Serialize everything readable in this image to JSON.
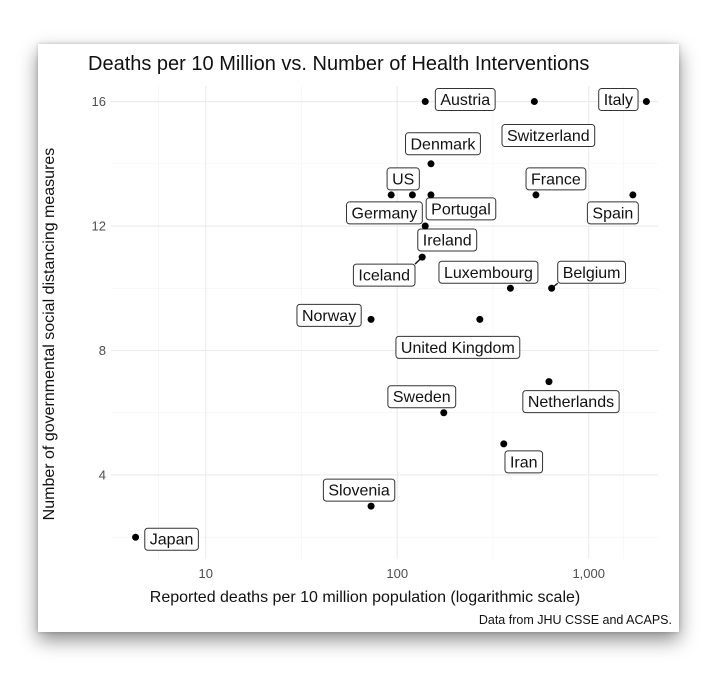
{
  "chart_data": {
    "type": "scatter",
    "title": "Deaths per 10 Million vs. Number of Health Interventions",
    "xlabel": "Reported deaths per 10 million population (logarithmic scale)",
    "ylabel": "Number of governmental social distancing measures",
    "caption": "Data from JHU CSSE and ACAPS.",
    "x_scale": "log",
    "xlim": [
      3.2,
      2300
    ],
    "ylim": [
      1.3,
      16.5
    ],
    "x_ticks": [
      10,
      100,
      1000
    ],
    "x_tick_labels": [
      "10",
      "100",
      "1,000"
    ],
    "y_ticks": [
      4,
      8,
      12,
      16
    ],
    "y_tick_labels": [
      "4",
      "8",
      "12",
      "16"
    ],
    "grid": true,
    "points": [
      {
        "label": "Austria",
        "x": 140,
        "y": 16
      },
      {
        "label": "Switzerland",
        "x": 520,
        "y": 16
      },
      {
        "label": "Italy",
        "x": 2000,
        "y": 16
      },
      {
        "label": "Denmark",
        "x": 150,
        "y": 14
      },
      {
        "label": "US",
        "x": 93,
        "y": 13
      },
      {
        "label": "Germany",
        "x": 120,
        "y": 13
      },
      {
        "label": "Portugal",
        "x": 150,
        "y": 13
      },
      {
        "label": "France",
        "x": 530,
        "y": 13
      },
      {
        "label": "Spain",
        "x": 1700,
        "y": 13
      },
      {
        "label": "Ireland",
        "x": 140,
        "y": 12
      },
      {
        "label": "Iceland",
        "x": 135,
        "y": 11
      },
      {
        "label": "Luxembourg",
        "x": 390,
        "y": 10
      },
      {
        "label": "Belgium",
        "x": 640,
        "y": 10
      },
      {
        "label": "Norway",
        "x": 73,
        "y": 9
      },
      {
        "label": "United Kingdom",
        "x": 270,
        "y": 9
      },
      {
        "label": "Netherlands",
        "x": 620,
        "y": 7
      },
      {
        "label": "Sweden",
        "x": 175,
        "y": 6
      },
      {
        "label": "Iran",
        "x": 360,
        "y": 5
      },
      {
        "label": "Slovenia",
        "x": 73,
        "y": 3
      },
      {
        "label": "Japan",
        "x": 4.3,
        "y": 2
      }
    ]
  }
}
